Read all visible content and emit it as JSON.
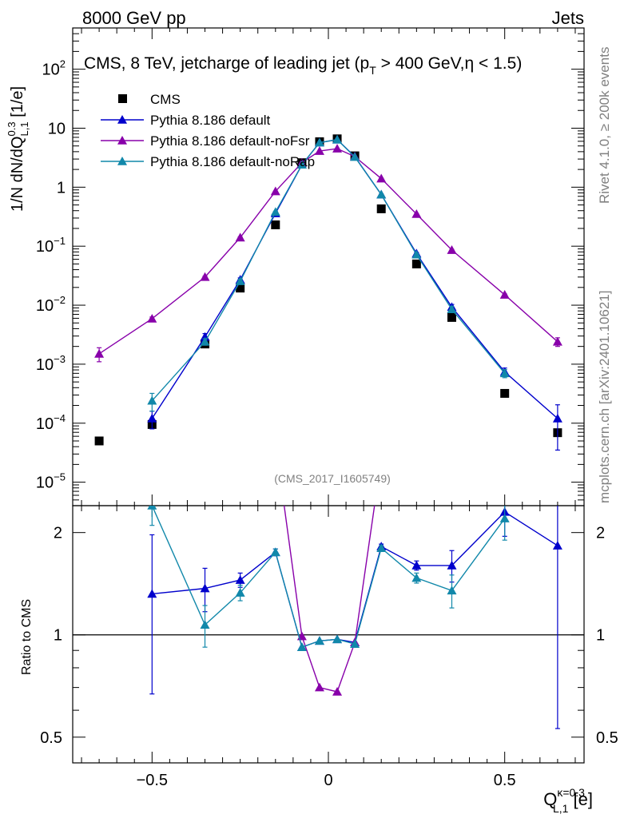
{
  "header": {
    "left": "8000 GeV pp",
    "right": "Jets"
  },
  "side_labels": {
    "rivet": "Rivet 4.1.0, ≥ 200k events",
    "mcplots": "mcplots.cern.ch [arXiv:2401.10621]"
  },
  "analysis_id": "(CMS_2017_I1605749)",
  "chart_data": [
    {
      "type": "scatter",
      "panel": "main",
      "title": "CMS, 8 TeV, jetcharge of leading jet (p_T > 400 GeV, η < 1.5)",
      "title_parts": {
        "a": "CMS, 8 TeV, jetcharge of leading jet (p",
        "sub": "T",
        "b": " > 400 GeV,η < 1.5)"
      },
      "ylabel": "1/N dN/dQ^{0.3}_{L,1} [1/e]",
      "ylabel_parts": {
        "a": "1/N dN/dQ",
        "sup": "0.3",
        "sub": "L,1",
        "b": " [1/e]"
      },
      "yscale": "log",
      "ylim": [
        4e-06,
        500
      ],
      "xlim": [
        -0.725,
        0.725
      ],
      "ytick_labels": [
        {
          "base": "10",
          "exp": "−5",
          "value": 1e-05
        },
        {
          "base": "10",
          "exp": "−4",
          "value": 0.0001
        },
        {
          "base": "10",
          "exp": "−3",
          "value": 0.001
        },
        {
          "base": "10",
          "exp": "−2",
          "value": 0.01
        },
        {
          "base": "10",
          "exp": "−1",
          "value": 0.1
        },
        {
          "base": "1",
          "exp": "",
          "value": 1
        },
        {
          "base": "10",
          "exp": "",
          "value": 10
        },
        {
          "base": "10",
          "exp": "2",
          "value": 100
        }
      ],
      "legend_position": "top-left",
      "series": [
        {
          "name": "CMS",
          "style": "square",
          "color": "#000000",
          "x": [
            -0.65,
            -0.5,
            -0.35,
            -0.25,
            -0.15,
            -0.075,
            -0.025,
            0.025,
            0.075,
            0.15,
            0.25,
            0.35,
            0.5,
            0.65
          ],
          "y": [
            5e-05,
            9.5e-05,
            0.0022,
            0.0195,
            0.23,
            2.6,
            5.9,
            6.6,
            3.4,
            0.43,
            0.05,
            0.0062,
            0.00032,
            6.9e-05
          ]
        },
        {
          "name": "Pythia 8.186 default",
          "style": "line-triangle",
          "color": "#0000cc",
          "x": [
            -0.5,
            -0.35,
            -0.25,
            -0.15,
            -0.075,
            -0.025,
            0.025,
            0.075,
            0.15,
            0.25,
            0.35,
            0.5,
            0.65
          ],
          "y": [
            0.00012,
            0.0029,
            0.027,
            0.36,
            2.4,
            5.7,
            6.4,
            3.3,
            0.75,
            0.075,
            0.0093,
            0.00074,
            0.00012
          ],
          "err_low": [
            4e-05,
            0.0004,
            0.002,
            0.01,
            0,
            0,
            0,
            0,
            0.01,
            0.003,
            0.001,
            0.00012,
            8.5e-05
          ],
          "err_high": [
            4e-05,
            0.0004,
            0.002,
            0.01,
            0,
            0,
            0,
            0,
            0.01,
            0.003,
            0.001,
            0.00012,
            8.5e-05
          ]
        },
        {
          "name": "Pythia 8.186 default-noFsr",
          "style": "line-triangle",
          "color": "#8800aa",
          "x": [
            -0.65,
            -0.5,
            -0.35,
            -0.25,
            -0.15,
            -0.075,
            -0.025,
            0.025,
            0.075,
            0.15,
            0.25,
            0.35,
            0.5,
            0.65
          ],
          "y": [
            0.0015,
            0.0059,
            0.03,
            0.14,
            0.85,
            2.6,
            4.1,
            4.5,
            3.3,
            1.4,
            0.35,
            0.086,
            0.015,
            0.0024
          ],
          "err_low": [
            0.0004,
            0.0004,
            0.001,
            0.004,
            0.01,
            0,
            0,
            0,
            0,
            0.01,
            0.005,
            0.002,
            0.0005,
            0.0004
          ],
          "err_high": [
            0.0004,
            0.0004,
            0.001,
            0.004,
            0.01,
            0,
            0,
            0,
            0,
            0.01,
            0.005,
            0.002,
            0.0005,
            0.0004
          ]
        },
        {
          "name": "Pythia 8.186 default-noRap",
          "style": "line-triangle",
          "color": "#1188aa",
          "x": [
            -0.5,
            -0.35,
            -0.25,
            -0.15,
            -0.075,
            -0.025,
            0.025,
            0.075,
            0.15,
            0.25,
            0.35,
            0.5
          ],
          "y": [
            0.00024,
            0.0024,
            0.0255,
            0.38,
            2.4,
            5.7,
            6.4,
            3.25,
            0.75,
            0.072,
            0.0085,
            0.0007
          ],
          "err_low": [
            8e-05,
            0.0003,
            0.002,
            0.01,
            0,
            0,
            0,
            0,
            0.01,
            0.003,
            0.001,
            0.00011
          ],
          "err_high": [
            8e-05,
            0.0003,
            0.002,
            0.01,
            0,
            0,
            0,
            0,
            0.01,
            0.003,
            0.001,
            0.00011
          ]
        }
      ]
    },
    {
      "type": "line",
      "panel": "ratio",
      "ylabel": "Ratio to CMS",
      "xlabel": "Q^{κ=0.3}_{L,1} [e]",
      "xlabel_parts": {
        "a": "Q",
        "sup": "κ=0.3",
        "sub": "L,1",
        "b": " [e]"
      },
      "yscale": "log",
      "ylim": [
        0.42,
        2.4
      ],
      "xlim": [
        -0.725,
        0.725
      ],
      "x_ticks": [
        {
          "label": "−0.5",
          "value": -0.5
        },
        {
          "label": "0",
          "value": 0
        },
        {
          "label": "0.5",
          "value": 0.5
        }
      ],
      "y_ticks": [
        {
          "label": "0.5",
          "value": 0.5
        },
        {
          "label": "1",
          "value": 1
        },
        {
          "label": "2",
          "value": 2
        }
      ],
      "reference_line": 1,
      "series": [
        {
          "name": "Pythia 8.186 default",
          "color": "#0000cc",
          "x": [
            -0.5,
            -0.35,
            -0.25,
            -0.15,
            -0.075,
            -0.025,
            0.025,
            0.075,
            0.15,
            0.25,
            0.35,
            0.5,
            0.65
          ],
          "y": [
            1.32,
            1.37,
            1.45,
            1.75,
            0.92,
            0.96,
            0.97,
            0.95,
            1.82,
            1.6,
            1.6,
            2.3,
            1.83
          ],
          "err_low": [
            0.65,
            0.2,
            0.07,
            0.04,
            0,
            0,
            0,
            0,
            0.03,
            0.05,
            0.17,
            0.35,
            1.3
          ],
          "err_high": [
            0.65,
            0.2,
            0.07,
            0.04,
            0,
            0,
            0,
            0,
            0.03,
            0.05,
            0.17,
            0.35,
            1.3
          ]
        },
        {
          "name": "Pythia 8.186 default-noFsr",
          "color": "#8800aa",
          "x": [
            -0.15,
            -0.075,
            -0.025,
            0.025,
            0.075,
            0.15
          ],
          "y": [
            3.7,
            0.99,
            0.7,
            0.68,
            0.95,
            3.3
          ]
        },
        {
          "name": "Pythia 8.186 default-noRap",
          "color": "#1188aa",
          "x": [
            -0.5,
            -0.35,
            -0.25,
            -0.15,
            -0.075,
            -0.025,
            0.025,
            0.075,
            0.15,
            0.25,
            0.35,
            0.5
          ],
          "y": [
            2.4,
            1.07,
            1.33,
            1.75,
            0.92,
            0.96,
            0.97,
            0.94,
            1.8,
            1.47,
            1.35,
            2.2
          ],
          "err_low": [
            0.3,
            0.15,
            0.07,
            0.04,
            0,
            0,
            0,
            0,
            0.03,
            0.05,
            0.15,
            0.3
          ],
          "err_high": [
            0.3,
            0.15,
            0.07,
            0.04,
            0,
            0,
            0,
            0,
            0.03,
            0.05,
            0.15,
            0.3
          ]
        }
      ]
    }
  ]
}
